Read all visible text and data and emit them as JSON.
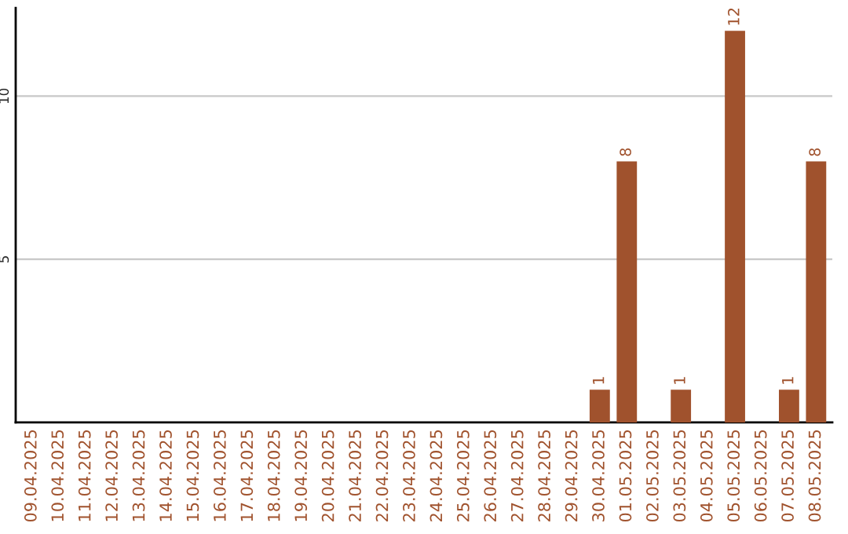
{
  "chart_data": {
    "type": "bar",
    "categories": [
      "09.04.2025",
      "10.04.2025",
      "11.04.2025",
      "12.04.2025",
      "13.04.2025",
      "14.04.2025",
      "15.04.2025",
      "16.04.2025",
      "17.04.2025",
      "18.04.2025",
      "19.04.2025",
      "20.04.2025",
      "21.04.2025",
      "22.04.2025",
      "23.04.2025",
      "24.04.2025",
      "25.04.2025",
      "26.04.2025",
      "27.04.2025",
      "28.04.2025",
      "29.04.2025",
      "30.04.2025",
      "01.05.2025",
      "02.05.2025",
      "03.05.2025",
      "04.05.2025",
      "05.05.2025",
      "06.05.2025",
      "07.05.2025",
      "08.05.2025"
    ],
    "values": [
      0,
      0,
      0,
      0,
      0,
      0,
      0,
      0,
      0,
      0,
      0,
      0,
      0,
      0,
      0,
      0,
      0,
      0,
      0,
      0,
      0,
      1,
      8,
      0,
      1,
      0,
      12,
      0,
      1,
      8
    ],
    "value_labels": [
      null,
      null,
      null,
      null,
      null,
      null,
      null,
      null,
      null,
      null,
      null,
      null,
      null,
      null,
      null,
      null,
      null,
      null,
      null,
      null,
      null,
      "1",
      "8",
      null,
      "1",
      null,
      "12",
      null,
      "1",
      "8"
    ],
    "color": "#a0522d",
    "ylim": [
      0,
      12.7
    ],
    "yticks": [
      5,
      10
    ],
    "grid": "y"
  }
}
